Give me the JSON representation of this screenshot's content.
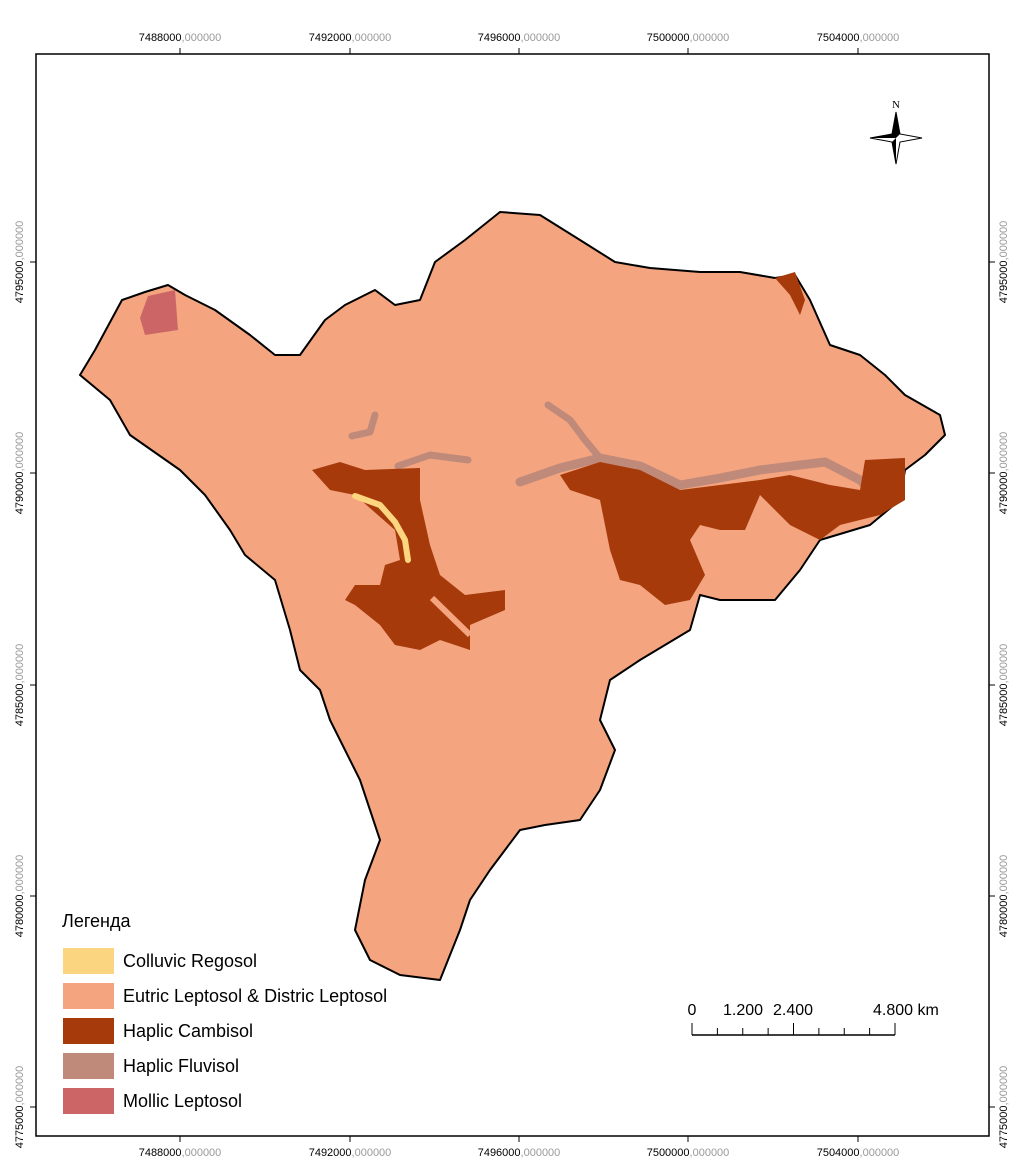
{
  "map": {
    "x_labels": [
      "7488000,000000",
      "7492000,000000",
      "7496000,000000",
      "7500000,000000",
      "7504000,000000"
    ],
    "y_labels": [
      "4795000,000000",
      "4790000,000000",
      "4785000,000000",
      "4780000,000000",
      "4775000,000000"
    ],
    "north": "N",
    "legend": {
      "title": "Легенда",
      "items": [
        {
          "name": "Colluvic Regosol",
          "color": "#fcd581"
        },
        {
          "name": "Eutric Leptosol & Distric Leptosol",
          "color": "#f4a57f"
        },
        {
          "name": "Haplic Cambisol",
          "color": "#a63a0a"
        },
        {
          "name": "Haplic Fluvisol",
          "color": "#c08a7a"
        },
        {
          "name": "Mollic Leptosol",
          "color": "#cc6666"
        }
      ]
    },
    "scale_bar": {
      "labels": [
        "0",
        "1.200",
        "2.400",
        "4.800 km"
      ]
    }
  }
}
